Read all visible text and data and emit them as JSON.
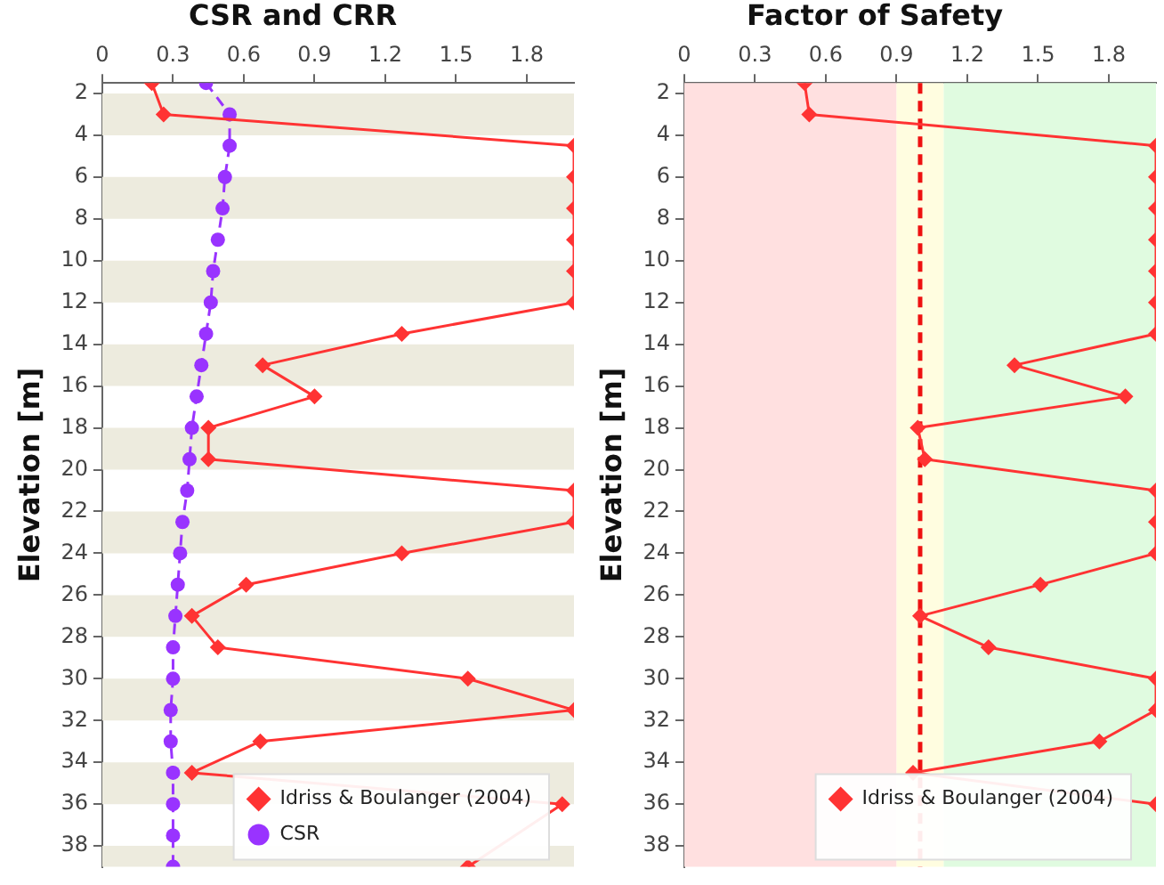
{
  "chart_data": [
    {
      "type": "line",
      "title": "CSR and CRR",
      "ylabel": "Elevation [m]",
      "orientation": "horizontal",
      "x": [
        1.5,
        3,
        4.5,
        6,
        7.5,
        9,
        10.5,
        12,
        13.5,
        15,
        16.5,
        18,
        19.5,
        21,
        22.5,
        24,
        25.5,
        27,
        28.5,
        30,
        31.5,
        33,
        34.5,
        36,
        37.5,
        39
      ],
      "series": [
        {
          "name": "Idriss & Boulanger (2004)",
          "color": "#ff3333",
          "marker": "diamond",
          "line_style": "solid",
          "values": [
            0.21,
            0.26,
            2,
            2,
            2,
            2,
            2,
            2,
            1.27,
            0.68,
            0.9,
            0.45,
            0.45,
            2,
            2,
            1.27,
            0.61,
            0.38,
            0.49,
            1.55,
            2,
            0.67,
            0.38,
            1.95,
            null,
            1.55
          ]
        },
        {
          "name": "CSR",
          "color": "#9933ff",
          "marker": "circle",
          "line_style": "dashed",
          "values": [
            0.44,
            0.54,
            0.54,
            0.52,
            0.51,
            0.49,
            0.47,
            0.46,
            0.44,
            0.42,
            0.4,
            0.38,
            0.37,
            0.36,
            0.34,
            0.33,
            0.32,
            0.31,
            0.3,
            0.3,
            0.29,
            0.29,
            0.3,
            0.3,
            0.3,
            0.3
          ]
        }
      ],
      "xlim": [
        0,
        2
      ],
      "xticks": [
        0,
        0.3,
        0.6,
        0.9,
        1.2,
        1.5,
        1.8
      ],
      "ylim": [
        39,
        1.5
      ],
      "yticks": [
        2,
        4,
        6,
        8,
        10,
        12,
        14,
        16,
        18,
        20,
        22,
        24,
        26,
        28,
        30,
        32,
        34,
        36,
        38
      ],
      "bands": [
        {
          "axis": "y",
          "from": 2,
          "to": 4,
          "color": "#edebde"
        },
        {
          "axis": "y",
          "from": 6,
          "to": 8,
          "color": "#edebde"
        },
        {
          "axis": "y",
          "from": 10,
          "to": 12,
          "color": "#edebde"
        },
        {
          "axis": "y",
          "from": 14,
          "to": 16,
          "color": "#edebde"
        },
        {
          "axis": "y",
          "from": 18,
          "to": 20,
          "color": "#edebde"
        },
        {
          "axis": "y",
          "from": 22,
          "to": 24,
          "color": "#edebde"
        },
        {
          "axis": "y",
          "from": 26,
          "to": 28,
          "color": "#edebde"
        },
        {
          "axis": "y",
          "from": 30,
          "to": 32,
          "color": "#edebde"
        },
        {
          "axis": "y",
          "from": 34,
          "to": 36,
          "color": "#edebde"
        },
        {
          "axis": "y",
          "from": 38,
          "to": 39,
          "color": "#edebde"
        }
      ],
      "legend": "bottom right"
    },
    {
      "type": "line",
      "title": "Factor of Safety",
      "ylabel": "Elevation [m]",
      "orientation": "horizontal",
      "x": [
        1.5,
        3,
        4.5,
        6,
        7.5,
        9,
        10.5,
        12,
        13.5,
        15,
        16.5,
        18,
        19.5,
        21,
        22.5,
        24,
        25.5,
        27,
        28.5,
        30,
        31.5,
        33,
        34.5,
        36
      ],
      "series": [
        {
          "name": "Idriss & Boulanger (2004)",
          "color": "#ff3333",
          "marker": "diamond",
          "line_style": "solid",
          "values": [
            0.51,
            0.53,
            2,
            2,
            2,
            2,
            2,
            2,
            2,
            1.4,
            1.87,
            0.99,
            1.02,
            2,
            2,
            2,
            1.51,
            1.0,
            1.29,
            2,
            2,
            1.76,
            0.97,
            2
          ]
        }
      ],
      "xlim": [
        0,
        2
      ],
      "xticks": [
        0,
        0.3,
        0.6,
        0.9,
        1.2,
        1.5,
        1.8
      ],
      "ylim": [
        39,
        1.5
      ],
      "yticks": [
        2,
        4,
        6,
        8,
        10,
        12,
        14,
        16,
        18,
        20,
        22,
        24,
        26,
        28,
        30,
        32,
        34,
        36,
        38
      ],
      "bands": [
        {
          "axis": "x",
          "from": 0,
          "to": 0.9,
          "color": "#ffe0e0"
        },
        {
          "axis": "x",
          "from": 0.9,
          "to": 1.1,
          "color": "#fffde0"
        },
        {
          "axis": "x",
          "from": 1.1,
          "to": 2,
          "color": "#e0fbe0"
        }
      ],
      "ref_lines": [
        {
          "axis": "x",
          "value": 1.0,
          "color": "#ee1111",
          "line_style": "dashed"
        }
      ],
      "grid": false,
      "legend": "bottom right"
    }
  ]
}
